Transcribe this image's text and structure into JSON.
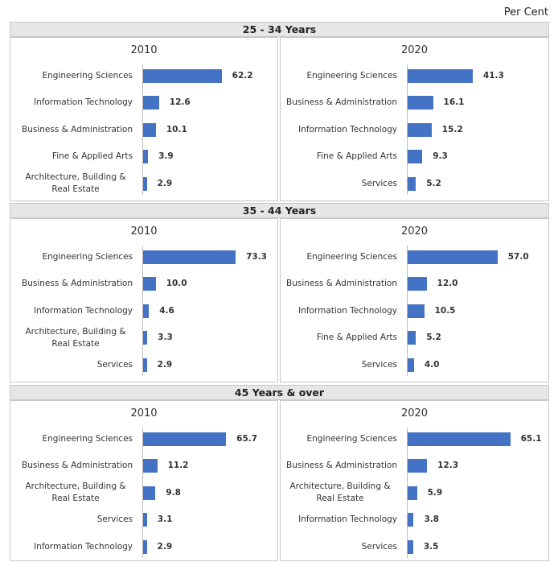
{
  "unit": "Per Cent",
  "sections": [
    "25 - 34 Years",
    "35 - 44 Years",
    "45 Years & over"
  ],
  "chart_data": [
    {
      "type": "barh",
      "title": "2010",
      "color": "#4472c4",
      "categories": [
        "Engineering Sciences",
        "Information Technology",
        "Business & Administration",
        "Fine & Applied Arts",
        "Architecture, Building & Real Estate"
      ],
      "values": [
        62.2,
        12.6,
        10.1,
        3.9,
        2.9
      ]
    },
    {
      "type": "barh",
      "title": "2020",
      "color": "#4472c4",
      "categories": [
        "Engineering Sciences",
        "Business & Administration",
        "Information Technology",
        "Fine & Applied Arts",
        "Services"
      ],
      "values": [
        41.3,
        16.1,
        15.2,
        9.3,
        5.2
      ]
    },
    {
      "type": "barh",
      "title": "2010",
      "color": "#4472c4",
      "categories": [
        "Engineering Sciences",
        "Business & Administration",
        "Information Technology",
        "Architecture, Building & Real Estate",
        "Services"
      ],
      "values": [
        73.3,
        10,
        4.6,
        3.3,
        2.9
      ],
      "value_labels": [
        "73.3",
        "10.0",
        "4.6",
        "3.3",
        "2.9"
      ]
    },
    {
      "type": "barh",
      "title": "2020",
      "color": "#4472c4",
      "categories": [
        "Engineering Sciences",
        "Business & Administration",
        "Information Technology",
        "Fine & Applied Arts",
        "Services"
      ],
      "values": [
        57,
        12,
        10.5,
        5.2,
        4
      ],
      "value_labels": [
        "57.0",
        "12.0",
        "10.5",
        "5.2",
        "4.0"
      ]
    },
    {
      "type": "barh",
      "title": "2010",
      "color": "#4472c4",
      "categories": [
        "Engineering Sciences",
        "Business & Administration",
        "Architecture, Building & Real Estate",
        "Services",
        "Information Technology"
      ],
      "values": [
        65.7,
        11.2,
        9.8,
        3.1,
        2.9
      ]
    },
    {
      "type": "barh",
      "title": "2020",
      "color": "#4472c4",
      "categories": [
        "Engineering Sciences",
        "Business & Administration",
        "Architecture, Building & Real Estate",
        "Information Technology",
        "Services"
      ],
      "values": [
        65.1,
        12.3,
        5.9,
        3.8,
        3.5
      ]
    }
  ]
}
